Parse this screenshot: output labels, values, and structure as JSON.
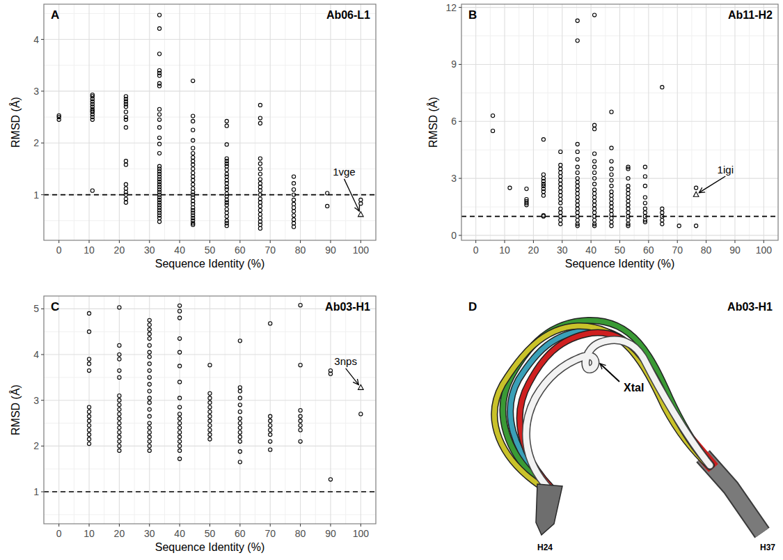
{
  "chart_data": [
    {
      "type": "scatter",
      "label": "A",
      "title": "Ab06-L1",
      "x_label": "Sequence Identity (%)",
      "y_label": "RMSD (Å)",
      "xlim": [
        -5,
        105
      ],
      "ylim": [
        0.12,
        4.68
      ],
      "xticks": [
        0,
        10,
        20,
        30,
        40,
        50,
        60,
        70,
        80,
        90,
        100
      ],
      "yticks": [
        1,
        2,
        3,
        4
      ],
      "grid": true,
      "series": [
        {
          "marker": "circle",
          "color": "#000000",
          "x": [
            0,
            0,
            0,
            11.1,
            11.1,
            11.1,
            11.1,
            11.1,
            11.1,
            11.1,
            11.1,
            11.1,
            11.1,
            11.1,
            11.1,
            11.1,
            22.2,
            22.2,
            22.2,
            22.2,
            22.2,
            22.2,
            22.2,
            22.2,
            22.2,
            22.2,
            22.2,
            22.2,
            22.2,
            22.2,
            22.2,
            22.2,
            22.2,
            33.3,
            33.3,
            33.3,
            33.3,
            33.3,
            33.3,
            33.3,
            33.3,
            33.3,
            33.3,
            33.3,
            33.3,
            33.3,
            33.3,
            33.3,
            33.3,
            33.3,
            33.3,
            33.3,
            33.3,
            33.3,
            33.3,
            33.3,
            33.3,
            33.3,
            33.3,
            33.3,
            33.3,
            33.3,
            33.3,
            33.3,
            33.3,
            33.3,
            33.3,
            33.3,
            33.3,
            33.3,
            44.4,
            44.4,
            44.4,
            44.4,
            44.4,
            44.4,
            44.4,
            44.4,
            44.4,
            44.4,
            44.4,
            44.4,
            44.4,
            44.4,
            44.4,
            44.4,
            44.4,
            44.4,
            44.4,
            44.4,
            44.4,
            44.4,
            44.4,
            44.4,
            44.4,
            44.4,
            44.4,
            44.4,
            44.4,
            55.6,
            55.6,
            55.6,
            55.6,
            55.6,
            55.6,
            55.6,
            55.6,
            55.6,
            55.6,
            55.6,
            55.6,
            55.6,
            55.6,
            55.6,
            55.6,
            55.6,
            55.6,
            55.6,
            55.6,
            55.6,
            55.6,
            55.6,
            55.6,
            55.6,
            66.7,
            66.7,
            66.7,
            66.7,
            66.7,
            66.7,
            66.7,
            66.7,
            66.7,
            66.7,
            66.7,
            66.7,
            66.7,
            66.7,
            66.7,
            66.7,
            66.7,
            66.7,
            66.7,
            66.7,
            66.7,
            77.8,
            77.8,
            77.8,
            77.8,
            77.8,
            77.8,
            77.8,
            77.8,
            77.8,
            77.8,
            77.8,
            77.8,
            88.9,
            88.9,
            100,
            100
          ],
          "values": [
            2.45,
            2.5,
            2.53,
            1.08,
            2.45,
            2.5,
            2.55,
            2.6,
            2.62,
            2.65,
            2.7,
            2.75,
            2.8,
            2.85,
            2.9,
            2.93,
            0.85,
            0.92,
            1.0,
            1.05,
            1.12,
            1.2,
            1.58,
            1.65,
            2.3,
            2.45,
            2.5,
            2.6,
            2.7,
            2.75,
            2.8,
            2.85,
            2.9,
            4.47,
            4.21,
            3.72,
            3.4,
            3.35,
            3.3,
            3.15,
            3.1,
            2.65,
            2.55,
            2.45,
            2.3,
            2.1,
            1.98,
            1.8,
            1.55,
            1.5,
            1.45,
            1.4,
            1.35,
            1.3,
            1.25,
            1.2,
            1.15,
            1.1,
            1.05,
            1.0,
            0.95,
            0.9,
            0.85,
            0.8,
            0.75,
            0.7,
            0.65,
            0.6,
            0.55,
            0.48,
            3.2,
            2.52,
            2.42,
            2.25,
            2.05,
            1.9,
            1.8,
            1.72,
            1.65,
            1.58,
            1.5,
            1.42,
            1.35,
            1.28,
            1.2,
            1.12,
            1.05,
            1.0,
            0.95,
            0.88,
            0.82,
            0.75,
            0.7,
            0.65,
            0.6,
            0.55,
            0.5,
            0.45,
            0.42,
            2.42,
            2.33,
            1.97,
            1.7,
            1.65,
            1.6,
            1.55,
            1.48,
            1.4,
            1.35,
            1.28,
            1.22,
            1.15,
            1.1,
            1.02,
            0.97,
            0.9,
            0.85,
            0.8,
            0.72,
            0.65,
            0.58,
            0.5,
            0.45,
            0.4,
            2.73,
            2.48,
            2.38,
            1.7,
            1.6,
            1.5,
            1.4,
            1.3,
            1.22,
            1.15,
            1.08,
            1.0,
            0.92,
            0.85,
            0.78,
            0.7,
            0.62,
            0.55,
            0.48,
            0.42,
            0.35,
            1.35,
            1.22,
            1.1,
            1.0,
            0.9,
            0.82,
            0.75,
            0.68,
            0.6,
            0.52,
            0.45,
            0.38,
            1.03,
            0.78,
            0.9,
            0.83
          ]
        },
        {
          "marker": "triangle",
          "color": "#000000",
          "x": [
            100
          ],
          "values": [
            0.62
          ]
        }
      ],
      "reference_lines": [
        {
          "y": 1,
          "line_style": "dashed"
        }
      ],
      "annotations": [
        {
          "text": "1vge",
          "x": 94.5,
          "y": 1.44
        }
      ]
    },
    {
      "type": "scatter",
      "label": "B",
      "title": "Ab11-H2",
      "x_label": "Sequence Identity (%)",
      "y_label": "RMSD (Å)",
      "xlim": [
        -5,
        105
      ],
      "ylim": [
        -0.26,
        12.17
      ],
      "xticks": [
        0,
        10,
        20,
        30,
        40,
        50,
        60,
        70,
        80,
        90,
        100
      ],
      "yticks": [
        0,
        3,
        6,
        9,
        12
      ],
      "grid": true,
      "series": [
        {
          "marker": "circle",
          "color": "#000000",
          "x": [
            5.9,
            5.9,
            11.8,
            17.6,
            17.6,
            17.6,
            17.6,
            17.6,
            23.5,
            23.5,
            23.5,
            23.5,
            23.5,
            23.5,
            23.5,
            23.5,
            23.5,
            23.5,
            23.5,
            29.4,
            29.4,
            29.4,
            29.4,
            29.4,
            29.4,
            29.4,
            29.4,
            29.4,
            29.4,
            29.4,
            29.4,
            29.4,
            29.4,
            29.4,
            29.4,
            29.4,
            35.3,
            35.3,
            35.3,
            35.3,
            35.3,
            35.3,
            35.3,
            35.3,
            35.3,
            35.3,
            35.3,
            35.3,
            35.3,
            35.3,
            35.3,
            35.3,
            35.3,
            35.3,
            35.3,
            35.3,
            35.3,
            41.2,
            41.2,
            41.2,
            41.2,
            41.2,
            41.2,
            41.2,
            41.2,
            41.2,
            41.2,
            41.2,
            41.2,
            41.2,
            41.2,
            41.2,
            41.2,
            41.2,
            41.2,
            41.2,
            41.2,
            47.1,
            47.1,
            47.1,
            47.1,
            47.1,
            47.1,
            47.1,
            47.1,
            47.1,
            47.1,
            47.1,
            47.1,
            47.1,
            47.1,
            47.1,
            47.1,
            47.1,
            52.9,
            52.9,
            52.9,
            52.9,
            52.9,
            52.9,
            52.9,
            52.9,
            52.9,
            52.9,
            52.9,
            52.9,
            52.9,
            52.9,
            52.9,
            58.8,
            58.8,
            58.8,
            58.8,
            58.8,
            58.8,
            58.8,
            58.8,
            58.8,
            58.8,
            64.7,
            64.7,
            64.7,
            64.7,
            64.7,
            64.7,
            70.6,
            76.5,
            76.5
          ],
          "values": [
            6.3,
            5.5,
            2.5,
            2.45,
            1.9,
            1.8,
            1.7,
            1.6,
            5.05,
            3.2,
            3.0,
            2.85,
            2.7,
            2.6,
            2.45,
            2.3,
            2.1,
            1.05,
            1.0,
            4.4,
            3.7,
            3.5,
            3.3,
            3.1,
            2.9,
            2.7,
            2.5,
            2.3,
            2.1,
            1.9,
            1.7,
            1.4,
            1.2,
            1.0,
            0.8,
            0.6,
            11.3,
            10.25,
            4.8,
            4.4,
            4.0,
            3.6,
            3.3,
            3.0,
            2.8,
            2.6,
            2.4,
            2.2,
            2.0,
            1.8,
            1.6,
            1.4,
            1.2,
            1.0,
            0.8,
            0.6,
            0.5,
            11.6,
            5.8,
            5.6,
            4.3,
            3.9,
            3.6,
            3.3,
            3.0,
            2.7,
            2.4,
            2.2,
            2.0,
            1.8,
            1.6,
            1.4,
            1.2,
            1.0,
            0.8,
            0.6,
            0.5,
            6.5,
            4.6,
            3.9,
            3.5,
            3.2,
            2.9,
            2.6,
            2.3,
            2.1,
            1.9,
            1.7,
            1.5,
            1.3,
            1.1,
            0.9,
            0.7,
            0.5,
            3.6,
            3.5,
            3.0,
            2.6,
            2.4,
            2.2,
            2.0,
            1.8,
            1.6,
            1.4,
            1.2,
            1.0,
            0.8,
            0.6,
            0.5,
            3.6,
            3.1,
            2.6,
            2.0,
            1.7,
            1.4,
            1.2,
            1.0,
            0.8,
            0.7,
            7.8,
            1.4,
            1.2,
            1.0,
            0.8,
            0.6,
            0.5,
            2.5,
            0.5
          ]
        },
        {
          "marker": "triangle",
          "color": "#000000",
          "x": [
            76.5
          ],
          "values": [
            2.15
          ]
        }
      ],
      "reference_lines": [
        {
          "y": 1,
          "line_style": "dashed"
        }
      ],
      "annotations": [
        {
          "text": "1igi",
          "x": 86.7,
          "y": 3.48
        }
      ]
    },
    {
      "type": "scatter",
      "label": "C",
      "title": "Ab03-H1",
      "x_label": "Sequence Identity (%)",
      "y_label": "RMSD (Å)",
      "xlim": [
        -5,
        105
      ],
      "ylim": [
        0.3,
        5.28
      ],
      "xticks": [
        0,
        10,
        20,
        30,
        40,
        50,
        60,
        70,
        80,
        90,
        100
      ],
      "yticks": [
        1,
        2,
        3,
        4,
        5
      ],
      "grid": true,
      "series": [
        {
          "marker": "circle",
          "color": "#000000",
          "x": [
            10,
            10,
            10,
            10,
            10,
            10,
            10,
            10,
            10,
            10,
            10,
            10,
            10,
            10,
            20,
            20,
            20,
            20,
            20,
            20,
            20,
            20,
            20,
            20,
            20,
            20,
            20,
            20,
            20,
            20,
            20,
            20,
            20,
            30,
            30,
            30,
            30,
            30,
            30,
            30,
            30,
            30,
            30,
            30,
            30,
            30,
            30,
            30,
            30,
            30,
            30,
            30,
            30,
            30,
            30,
            30,
            30,
            40,
            40,
            40,
            40,
            40,
            40,
            40,
            40,
            40,
            40,
            40,
            40,
            40,
            40,
            40,
            40,
            40,
            40,
            40,
            50,
            50,
            50,
            50,
            50,
            50,
            50,
            50,
            50,
            50,
            50,
            50,
            60,
            60,
            60,
            60,
            60,
            60,
            60,
            60,
            60,
            60,
            60,
            60,
            60,
            60,
            70,
            70,
            70,
            70,
            70,
            70,
            70,
            70,
            80,
            80,
            80,
            80,
            80,
            80,
            80,
            80,
            90,
            90,
            90,
            100
          ],
          "values": [
            4.9,
            4.5,
            3.9,
            3.8,
            3.65,
            2.85,
            2.75,
            2.65,
            2.55,
            2.45,
            2.35,
            2.25,
            2.15,
            2.05,
            5.03,
            4.2,
            4.0,
            3.9,
            3.65,
            3.5,
            3.1,
            3.0,
            2.9,
            2.8,
            2.7,
            2.6,
            2.5,
            2.4,
            2.3,
            2.2,
            2.1,
            2.0,
            1.9,
            4.75,
            4.65,
            4.55,
            4.45,
            4.35,
            4.2,
            4.05,
            3.95,
            3.8,
            3.65,
            3.5,
            3.35,
            3.2,
            3.05,
            2.95,
            2.8,
            2.65,
            2.5,
            2.4,
            2.3,
            2.2,
            2.1,
            2.0,
            1.9,
            5.07,
            4.95,
            4.8,
            4.35,
            4.05,
            3.75,
            3.4,
            3.05,
            2.85,
            2.7,
            2.6,
            2.5,
            2.4,
            2.3,
            2.2,
            2.1,
            2.0,
            1.9,
            1.72,
            3.77,
            3.15,
            3.05,
            2.95,
            2.85,
            2.75,
            2.65,
            2.55,
            2.45,
            2.35,
            2.25,
            2.15,
            4.3,
            3.28,
            3.2,
            3.05,
            2.9,
            2.75,
            2.6,
            2.5,
            2.4,
            2.3,
            2.2,
            2.1,
            1.88,
            1.65,
            4.68,
            2.65,
            2.55,
            2.45,
            2.35,
            2.25,
            2.1,
            1.92,
            5.08,
            3.77,
            2.78,
            2.65,
            2.55,
            2.45,
            2.35,
            2.1,
            3.65,
            3.58,
            1.27,
            2.7
          ]
        },
        {
          "marker": "triangle",
          "color": "#000000",
          "x": [
            100
          ],
          "values": [
            3.28
          ]
        }
      ],
      "reference_lines": [
        {
          "y": 1,
          "line_style": "dashed"
        }
      ],
      "annotations": [
        {
          "text": "3nps",
          "x": 95,
          "y": 3.85
        }
      ]
    }
  ],
  "structure_panel": {
    "label": "D",
    "title": "Ab03-H1",
    "callout": "Xtal",
    "start_residue": "H24",
    "end_residue": "H37"
  }
}
